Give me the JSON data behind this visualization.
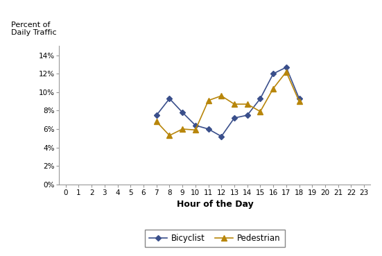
{
  "bicyclist_hours": [
    7,
    8,
    9,
    10,
    11,
    12,
    13,
    14,
    15,
    16,
    17,
    18
  ],
  "bicyclist_values": [
    0.075,
    0.093,
    0.078,
    0.064,
    0.06,
    0.052,
    0.072,
    0.075,
    0.093,
    0.12,
    0.127,
    0.093
  ],
  "pedestrian_hours": [
    7,
    8,
    9,
    10,
    11,
    12,
    13,
    14,
    15,
    16,
    17,
    18
  ],
  "pedestrian_values": [
    0.068,
    0.053,
    0.06,
    0.059,
    0.091,
    0.096,
    0.087,
    0.087,
    0.079,
    0.104,
    0.122,
    0.09
  ],
  "bicyclist_color": "#3A4F8B",
  "pedestrian_color": "#B8860B",
  "xlabel": "Hour of the Day",
  "ylabel_line1": "Percent of",
  "ylabel_line2": "Daily Traffic",
  "xlim": [
    -0.5,
    23.5
  ],
  "ylim": [
    0,
    0.15
  ],
  "yticks": [
    0.0,
    0.02,
    0.04,
    0.06,
    0.08,
    0.1,
    0.12,
    0.14
  ],
  "xticks": [
    0,
    1,
    2,
    3,
    4,
    5,
    6,
    7,
    8,
    9,
    10,
    11,
    12,
    13,
    14,
    15,
    16,
    17,
    18,
    19,
    20,
    21,
    22,
    23
  ],
  "background_color": "#ffffff",
  "legend_bicyclist": "Bicyclist",
  "legend_pedestrian": "Pedestrian"
}
